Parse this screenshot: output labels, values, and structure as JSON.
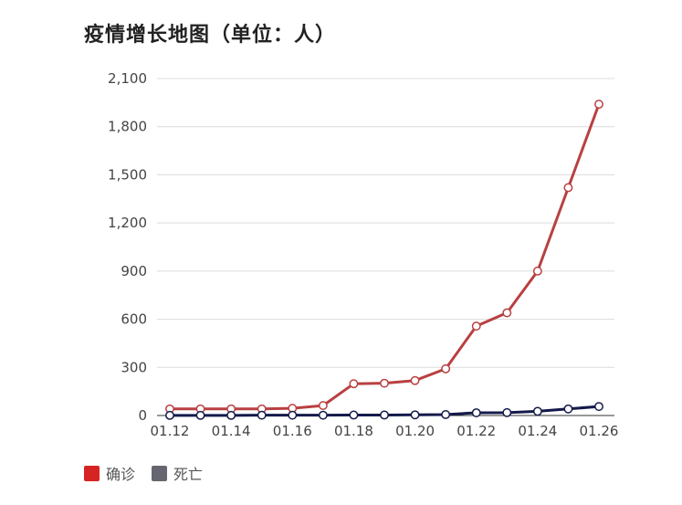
{
  "chart_data": {
    "type": "line",
    "title": "疫情增长地图（单位：人）",
    "xlabel": "",
    "ylabel": "",
    "x": [
      "01.12",
      "01.13",
      "01.14",
      "01.15",
      "01.16",
      "01.17",
      "01.18",
      "01.19",
      "01.20",
      "01.21",
      "01.22",
      "01.23",
      "01.24",
      "01.25",
      "01.26"
    ],
    "x_tick_labels": [
      "01.12",
      "01.14",
      "01.16",
      "01.18",
      "01.20",
      "01.22",
      "01.24",
      "01.26"
    ],
    "y_ticks": [
      "0",
      "300",
      "600",
      "900",
      "1,200",
      "1,500",
      "1,800",
      "2,100"
    ],
    "ylim": [
      0,
      2100
    ],
    "grid": true,
    "legend_position": "bottom-left",
    "series": [
      {
        "name": "确诊",
        "color": "#b94041",
        "values": [
          41,
          41,
          41,
          41,
          45,
          62,
          198,
          201,
          218,
          291,
          557,
          640,
          900,
          1420,
          1940
        ]
      },
      {
        "name": "死亡",
        "color": "#141a4a",
        "values": [
          1,
          1,
          1,
          2,
          2,
          2,
          3,
          3,
          4,
          6,
          17,
          18,
          26,
          41,
          56
        ]
      }
    ],
    "legend_colors": [
      "#d62424",
      "#666670"
    ]
  }
}
